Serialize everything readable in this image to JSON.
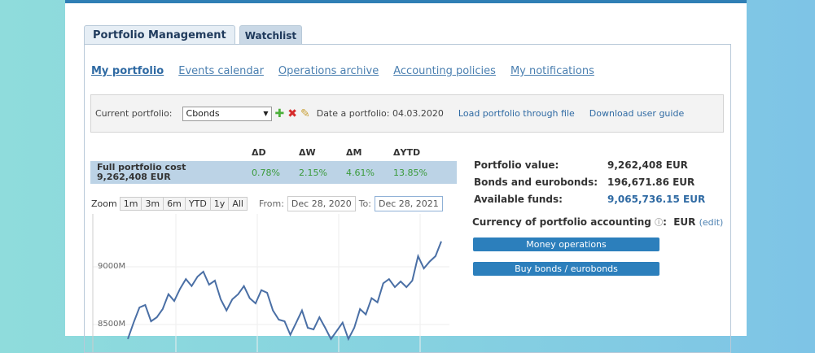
{
  "tabs": [
    "Portfolio Management",
    "Watchlist"
  ],
  "nav": [
    "My portfolio",
    "Events calendar",
    "Operations archive",
    "Accounting policies",
    "My notifications"
  ],
  "toolbar": {
    "current_label": "Current portfolio:",
    "portfolio": "Cbonds",
    "date_label": "Date a portfolio: 04.03.2020",
    "load_link": "Load portfolio through file",
    "guide_link": "Download user guide"
  },
  "perf": {
    "headers": [
      "ΔD",
      "ΔW",
      "ΔM",
      "ΔYTD"
    ],
    "label": "Full portfolio cost",
    "value": "9,262,408 EUR",
    "values": [
      "0.78%",
      "2.15%",
      "4.61%",
      "13.85%"
    ]
  },
  "zoom": {
    "label": "Zoom",
    "buttons": [
      "1m",
      "3m",
      "6m",
      "YTD",
      "1y",
      "All"
    ],
    "from_label": "From:",
    "from": "Dec 28, 2020",
    "to_label": "To:",
    "to": "Dec 28, 2021"
  },
  "info": [
    {
      "k": "Portfolio value:",
      "v": "9,262,408 EUR"
    },
    {
      "k": "Bonds and eurobonds:",
      "v": "196,671.86 EUR"
    },
    {
      "k": "Available funds:",
      "v": "9,065,736.15 EUR"
    }
  ],
  "currency": {
    "label": "Currency of portfolio accounting",
    "value": "EUR",
    "edit": "(edit)"
  },
  "buttons": {
    "money": "Money operations",
    "buy": "Buy bonds / eurobonds"
  },
  "colors": {
    "accent": "#2c7fbc",
    "line": "#4a6fa5",
    "positive": "#3a9a3a"
  },
  "chart_data": {
    "type": "line",
    "x_range": [
      "Dec 28, 2020",
      "Dec 28, 2021"
    ],
    "yticks": [
      "9000M",
      "8500M"
    ],
    "ytick_values": [
      9000,
      8500
    ],
    "grid": true,
    "values": [
      8375,
      8516,
      8648,
      8669,
      8528,
      8563,
      8634,
      8763,
      8704,
      8810,
      8894,
      8833,
      8915,
      8958,
      8845,
      8880,
      8718,
      8622,
      8718,
      8763,
      8833,
      8728,
      8683,
      8798,
      8775,
      8622,
      8542,
      8528,
      8411,
      8516,
      8622,
      8472,
      8458,
      8563,
      8472,
      8375,
      8446,
      8516,
      8375,
      8472,
      8634,
      8587,
      8728,
      8692,
      8857,
      8894,
      8824,
      8873,
      8824,
      8880,
      9092,
      8986,
      9045,
      9092,
      9220
    ]
  }
}
